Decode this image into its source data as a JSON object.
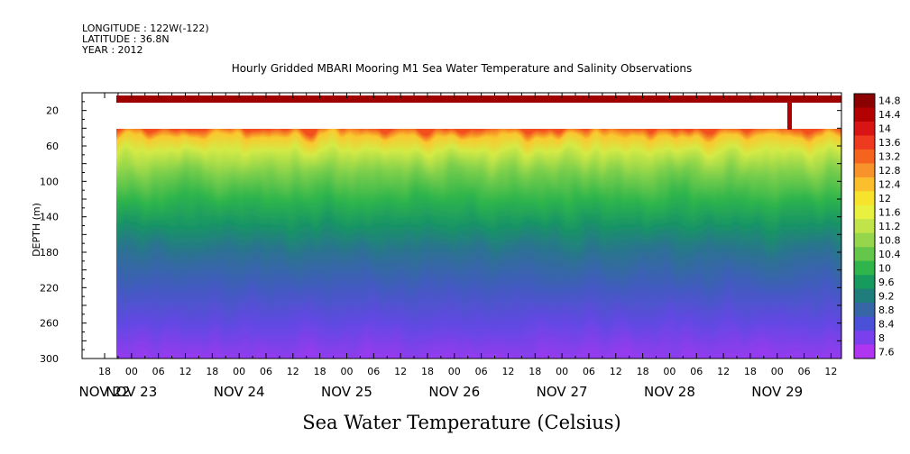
{
  "header": {
    "longitude": "LONGITUDE : 122W(-122)",
    "latitude": "LATITUDE : 36.8N",
    "year": "YEAR : 2012"
  },
  "chart_data": {
    "type": "heatmap",
    "title": "Hourly Gridded MBARI Mooring M1 Sea Water Temperature and Salinity Observations",
    "xlabel": "Sea Water Temperature (Celsius)",
    "ylabel": "DEPTH (m)",
    "x_hour_ticks": [
      "18",
      "00",
      "06",
      "12",
      "18",
      "00",
      "06",
      "12",
      "18",
      "00",
      "06",
      "12",
      "18",
      "00",
      "06",
      "12",
      "18",
      "00",
      "06",
      "12",
      "18",
      "00",
      "06",
      "12",
      "18",
      "00",
      "06",
      "12"
    ],
    "x_day_labels": [
      "NOV 22",
      "NOV 23",
      "NOV 24",
      "NOV 25",
      "NOV 26",
      "NOV 27",
      "NOV 28",
      "NOV 29"
    ],
    "y_ticks": [
      20,
      60,
      100,
      140,
      180,
      220,
      260,
      300
    ],
    "ylim": [
      300,
      0
    ],
    "colorbar_labels": [
      "14.8",
      "14.4",
      "14",
      "13.6",
      "13.2",
      "12.8",
      "12.4",
      "12",
      "11.6",
      "11.2",
      "10.8",
      "10.4",
      "10",
      "9.6",
      "9.2",
      "8.8",
      "8.4",
      "8",
      "7.6"
    ],
    "colorbar_colors": [
      "#8b0000",
      "#b30000",
      "#d81414",
      "#ee3a1e",
      "#f5641f",
      "#f8922a",
      "#fbbf2e",
      "#f7e32c",
      "#e8f040",
      "#c0e44a",
      "#96d64c",
      "#64c74c",
      "#2fb54c",
      "#169a5e",
      "#1f7d7c",
      "#3766a6",
      "#4a50d8",
      "#7a40ee",
      "#b035f0"
    ],
    "value_range": [
      7.6,
      14.8
    ],
    "profile": [
      {
        "depth": 40,
        "value": 13.4
      },
      {
        "depth": 50,
        "value": 12.3
      },
      {
        "depth": 65,
        "value": 11.4
      },
      {
        "depth": 90,
        "value": 10.6
      },
      {
        "depth": 120,
        "value": 10.0
      },
      {
        "depth": 150,
        "value": 9.5
      },
      {
        "depth": 180,
        "value": 9.0
      },
      {
        "depth": 220,
        "value": 8.6
      },
      {
        "depth": 260,
        "value": 8.2
      },
      {
        "depth": 300,
        "value": 7.8
      }
    ],
    "surface_band": {
      "depth_range": [
        8,
        14
      ],
      "value": 14.6
    },
    "data_gap_depth_range": [
      14,
      40
    ]
  }
}
